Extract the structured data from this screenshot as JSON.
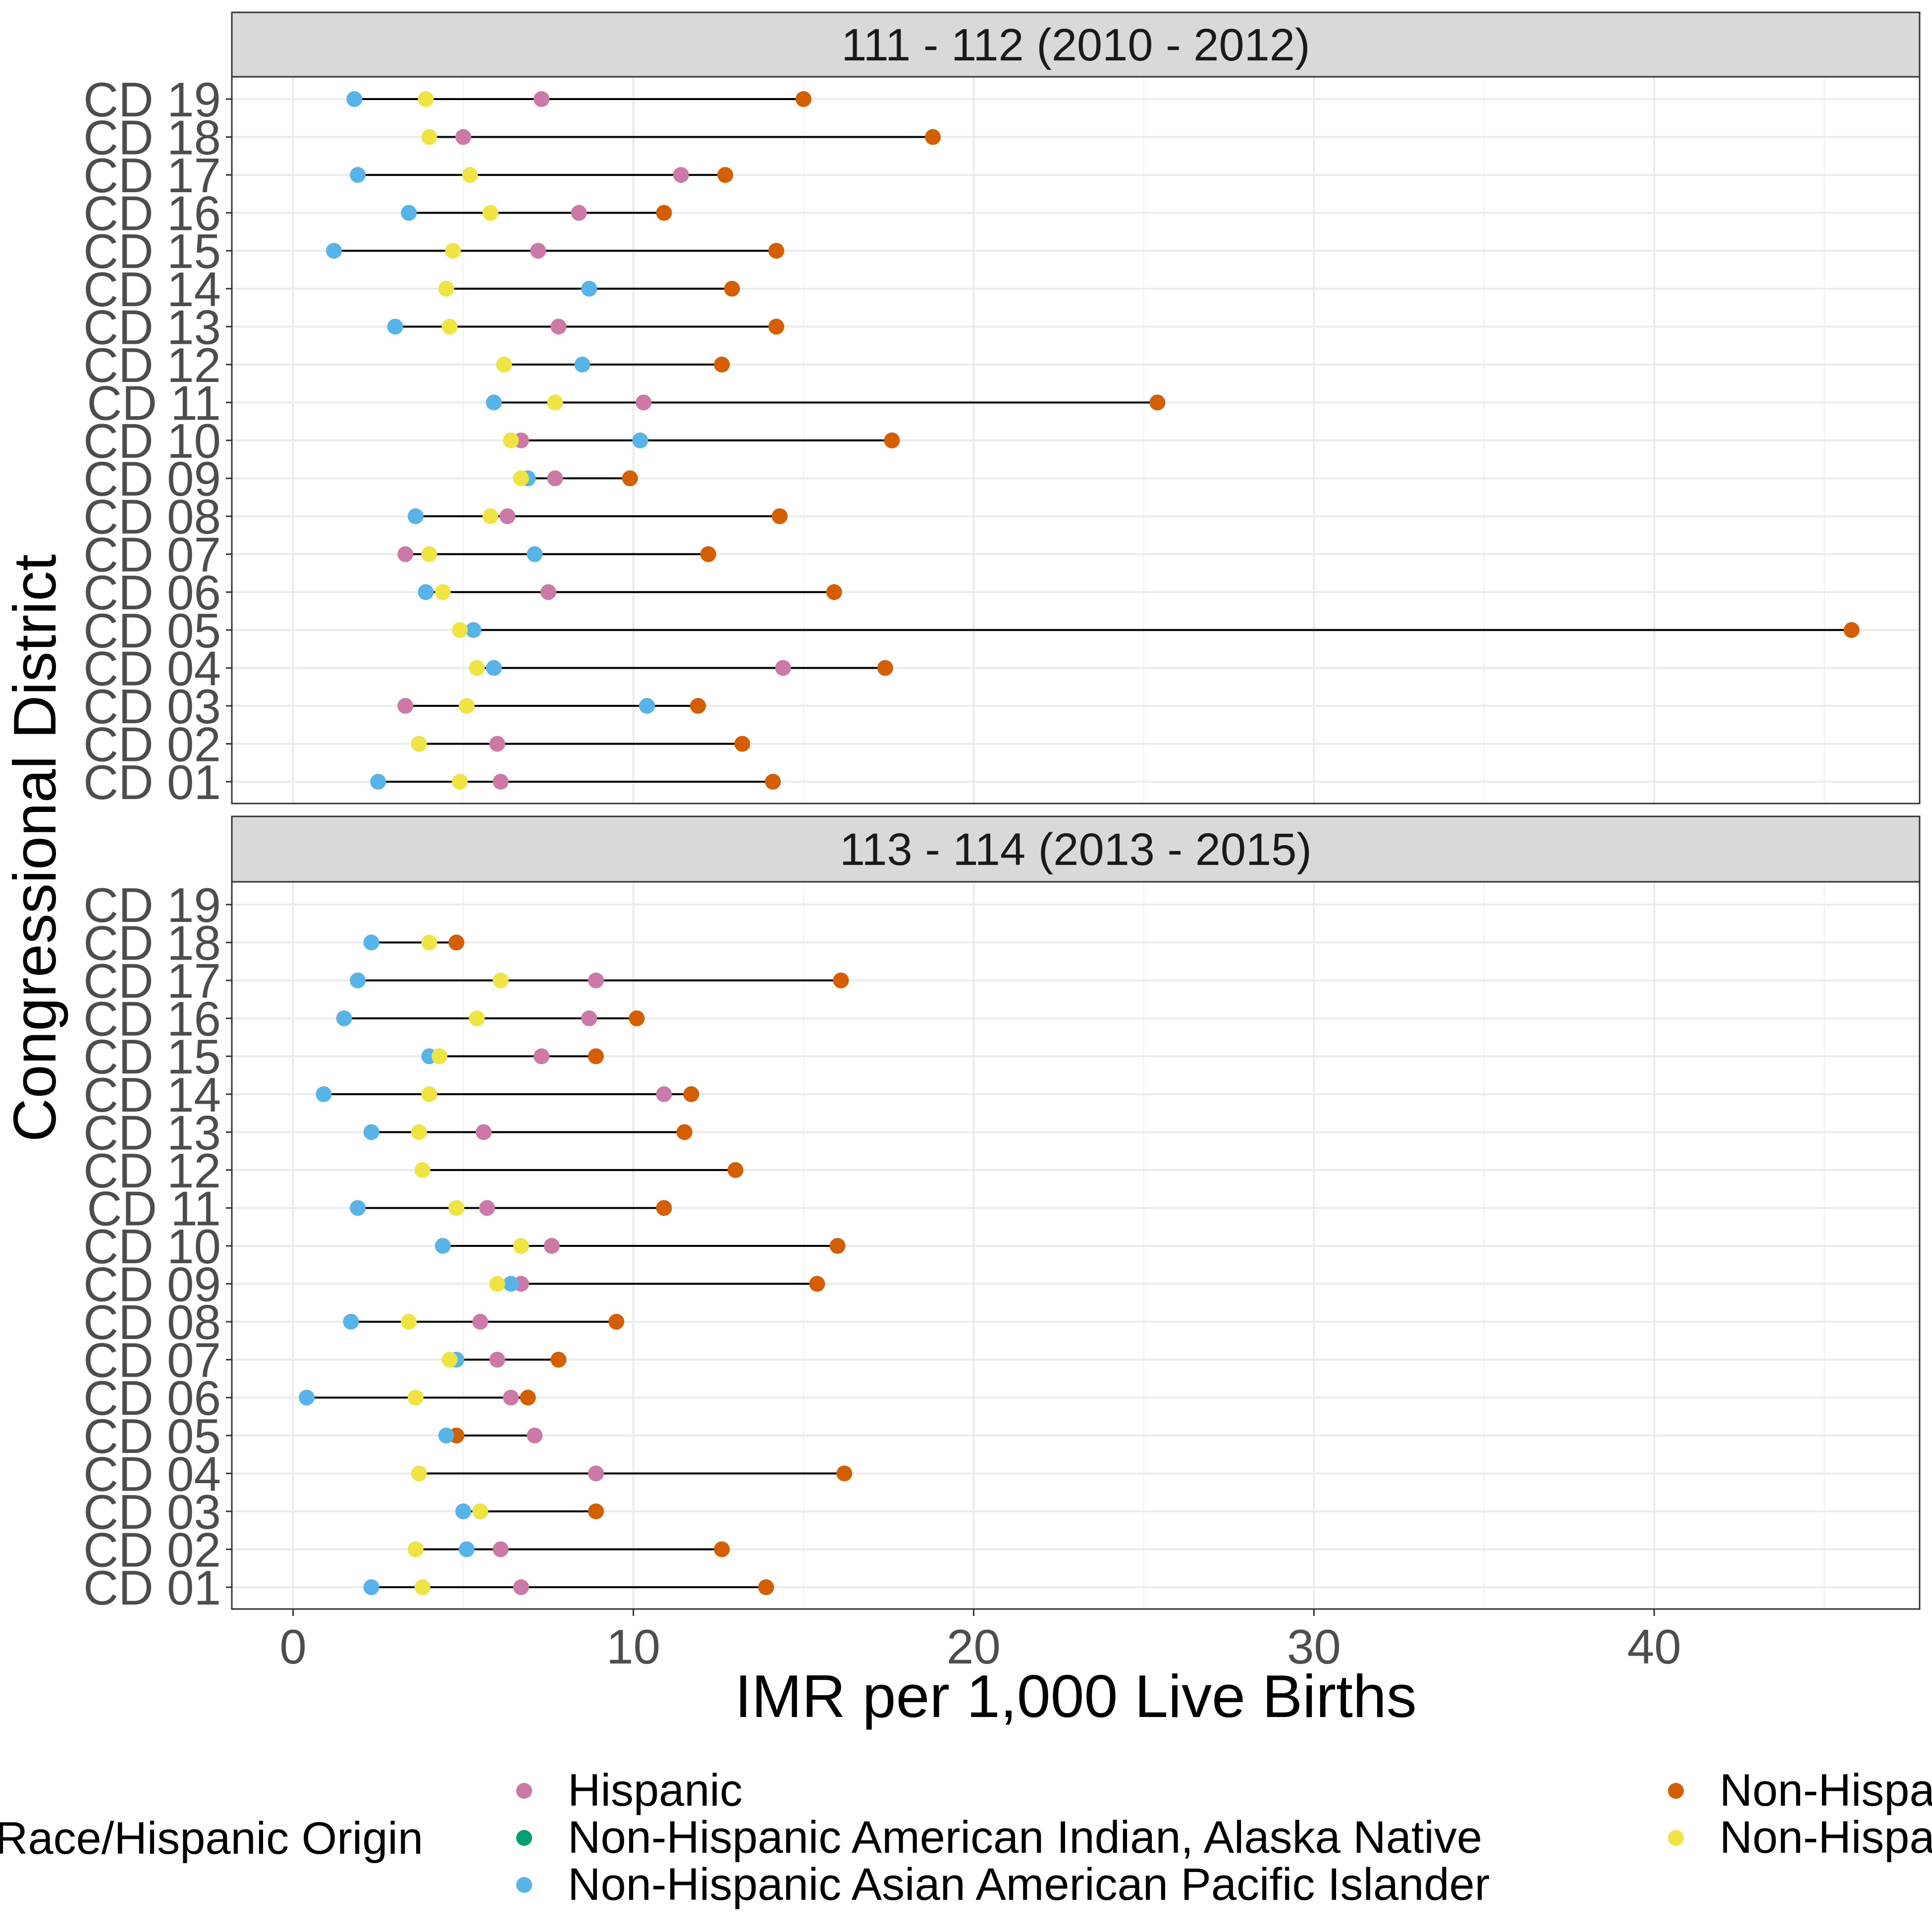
{
  "chart_data": {
    "type": "scatter",
    "style": "dumbbell, faceted vertically",
    "xlabel": "IMR per 1,000 Live Births",
    "ylabel": "Congressional District",
    "xlim": [
      -1.8,
      47.8
    ],
    "x_ticks": [
      "0",
      "10",
      "20",
      "30",
      "40"
    ],
    "x_tick_values": [
      0,
      10,
      20,
      30,
      40
    ],
    "grid": true,
    "legend_position": "bottom",
    "legend_title": "Race/Hispanic Origin",
    "categories": [
      "CD 01",
      "CD 02",
      "CD 03",
      "CD 04",
      "CD 05",
      "CD 06",
      "CD 07",
      "CD 08",
      "CD 09",
      "CD 10",
      "CD 11",
      "CD 12",
      "CD 13",
      "CD 14",
      "CD 15",
      "CD 16",
      "CD 17",
      "CD 18",
      "CD 19"
    ],
    "series": [
      {
        "name": "Hispanic",
        "color": "#CC79A7"
      },
      {
        "name": "Non-Hispanic American Indian, Alaska Native",
        "color": "#009E73"
      },
      {
        "name": "Non-Hispanic Asian American Pacific Islander",
        "color": "#56B4E9"
      },
      {
        "name": "Non-Hispa",
        "color": "#D55E00"
      },
      {
        "name": "Non-Hispa",
        "color": "#F0E442"
      }
    ],
    "panels": [
      {
        "title": "111 - 112 (2010 - 2012)",
        "rows": [
          {
            "hispanic": 6.1,
            "aapi": 2.5,
            "nh_dark": 14.1,
            "nh_yellow": 4.9
          },
          {
            "hispanic": 6.0,
            "aapi": 3.7,
            "nh_dark": 13.2,
            "nh_yellow": 3.7
          },
          {
            "hispanic": 3.3,
            "aapi": 10.4,
            "nh_dark": 11.9,
            "nh_yellow": 5.1
          },
          {
            "hispanic": 14.4,
            "aapi": 5.9,
            "nh_dark": 17.4,
            "nh_yellow": 5.4
          },
          {
            "hispanic": null,
            "aapi": 5.3,
            "nh_dark": 45.8,
            "nh_yellow": 4.9
          },
          {
            "hispanic": 7.5,
            "aapi": 3.9,
            "nh_dark": 15.9,
            "nh_yellow": 4.4
          },
          {
            "hispanic": 3.3,
            "aapi": 7.1,
            "nh_dark": 12.2,
            "nh_yellow": 4.0
          },
          {
            "hispanic": 6.3,
            "aapi": 3.6,
            "nh_dark": 14.3,
            "nh_yellow": 5.8
          },
          {
            "hispanic": 7.7,
            "aapi": 6.9,
            "nh_dark": 9.9,
            "nh_yellow": 6.7
          },
          {
            "hispanic": 6.7,
            "aapi": 10.2,
            "nh_dark": 17.6,
            "nh_yellow": 6.4
          },
          {
            "hispanic": 10.3,
            "aapi": 5.9,
            "nh_dark": 25.4,
            "nh_yellow": 7.7
          },
          {
            "hispanic": null,
            "aapi": 8.5,
            "nh_dark": 12.6,
            "nh_yellow": 6.2
          },
          {
            "hispanic": 7.8,
            "aapi": 3.0,
            "nh_dark": 14.2,
            "nh_yellow": 4.6
          },
          {
            "hispanic": null,
            "aapi": 8.7,
            "nh_dark": 12.9,
            "nh_yellow": 4.5
          },
          {
            "hispanic": 7.2,
            "aapi": 1.2,
            "nh_dark": 14.2,
            "nh_yellow": 4.7
          },
          {
            "hispanic": 8.4,
            "aapi": 3.4,
            "nh_dark": 10.9,
            "nh_yellow": 5.8
          },
          {
            "hispanic": 11.4,
            "aapi": 1.9,
            "nh_dark": 12.7,
            "nh_yellow": 5.2
          },
          {
            "hispanic": 5.0,
            "aapi": null,
            "nh_dark": 18.8,
            "nh_yellow": 4.0
          },
          {
            "hispanic": 7.3,
            "aapi": 1.8,
            "nh_dark": 15.0,
            "nh_yellow": 3.9
          }
        ]
      },
      {
        "title": "113 - 114 (2013 - 2015)",
        "rows": [
          {
            "hispanic": 6.7,
            "aapi": 2.3,
            "nh_dark": 13.9,
            "nh_yellow": 3.8
          },
          {
            "hispanic": 6.1,
            "aapi": 5.1,
            "nh_dark": 12.6,
            "nh_yellow": 3.6
          },
          {
            "hispanic": 5.5,
            "aapi": 5.0,
            "nh_dark": 8.9,
            "nh_yellow": 5.5
          },
          {
            "hispanic": 8.9,
            "aapi": null,
            "nh_dark": 16.2,
            "nh_yellow": 3.7
          },
          {
            "hispanic": 7.1,
            "aapi": 4.5,
            "nh_dark": 4.8,
            "nh_yellow": null
          },
          {
            "hispanic": 6.4,
            "aapi": 0.4,
            "nh_dark": 6.9,
            "nh_yellow": 3.6
          },
          {
            "hispanic": 6.0,
            "aapi": 4.8,
            "nh_dark": 7.8,
            "nh_yellow": 4.6
          },
          {
            "hispanic": 5.5,
            "aapi": 1.7,
            "nh_dark": 9.5,
            "nh_yellow": 3.4
          },
          {
            "hispanic": 6.7,
            "aapi": 6.4,
            "nh_dark": 15.4,
            "nh_yellow": 6.0
          },
          {
            "hispanic": 7.6,
            "aapi": 4.4,
            "nh_dark": 16.0,
            "nh_yellow": 6.7
          },
          {
            "hispanic": 5.7,
            "aapi": 1.9,
            "nh_dark": 10.9,
            "nh_yellow": 4.8
          },
          {
            "hispanic": null,
            "aapi": null,
            "nh_dark": 13.0,
            "nh_yellow": 3.8
          },
          {
            "hispanic": 5.6,
            "aapi": 2.3,
            "nh_dark": 11.5,
            "nh_yellow": 3.7
          },
          {
            "hispanic": 10.9,
            "aapi": 0.9,
            "nh_dark": 11.7,
            "nh_yellow": 4.0
          },
          {
            "hispanic": 7.3,
            "aapi": 4.0,
            "nh_dark": 8.9,
            "nh_yellow": 4.3
          },
          {
            "hispanic": 8.7,
            "aapi": 1.5,
            "nh_dark": 10.1,
            "nh_yellow": 5.4
          },
          {
            "hispanic": 8.9,
            "aapi": 1.9,
            "nh_dark": 16.1,
            "nh_yellow": 6.1
          },
          {
            "hispanic": null,
            "aapi": 2.3,
            "nh_dark": 4.8,
            "nh_yellow": 4.0
          },
          {
            "hispanic": null,
            "aapi": null,
            "nh_dark": null,
            "nh_yellow": null
          }
        ]
      }
    ]
  }
}
